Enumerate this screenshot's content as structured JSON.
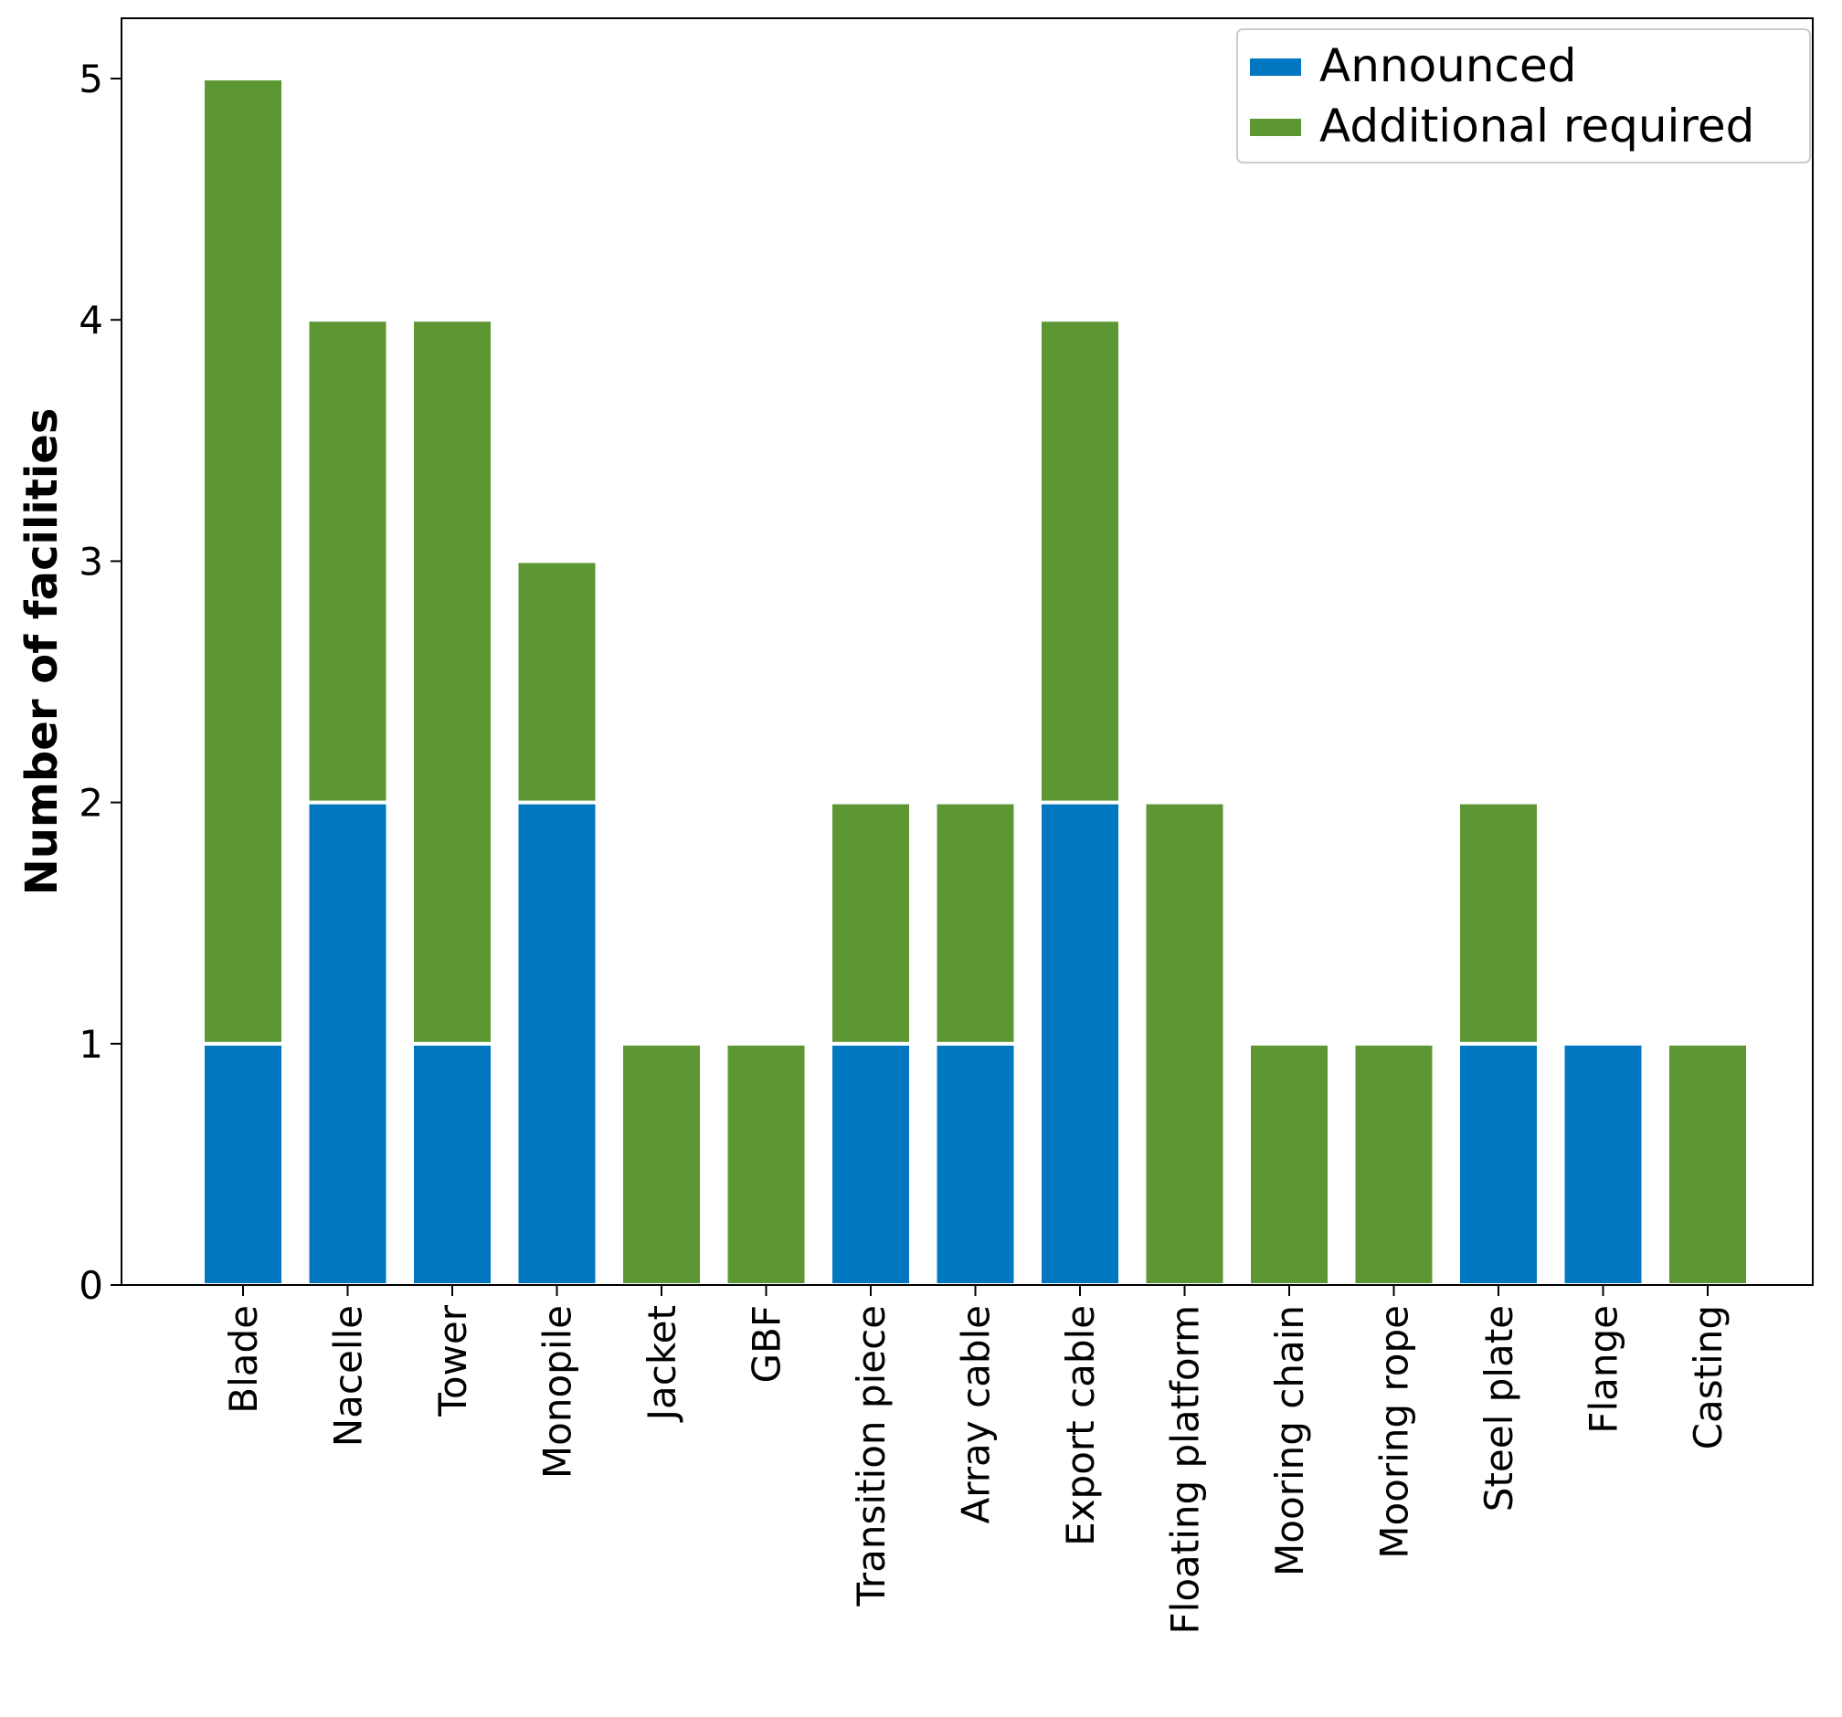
{
  "chart_data": {
    "type": "bar",
    "stacked": true,
    "title": "",
    "xlabel": "",
    "ylabel": "Number of facilities",
    "ylim": [
      0,
      5.25
    ],
    "yticks": [
      0,
      1,
      2,
      3,
      4,
      5
    ],
    "grid": false,
    "legend_position": "top-right",
    "categories": [
      "Blade",
      "Nacelle",
      "Tower",
      "Monopile",
      "Jacket",
      "GBF",
      "Transition piece",
      "Array cable",
      "Export cable",
      "Floating platform",
      "Mooring chain",
      "Mooring rope",
      "Steel plate",
      "Flange",
      "Casting"
    ],
    "series": [
      {
        "name": "Announced",
        "color": "#0077c0",
        "values": [
          1,
          2,
          1,
          2,
          0,
          0,
          1,
          1,
          2,
          0,
          0,
          0,
          1,
          1,
          0
        ]
      },
      {
        "name": "Additional required",
        "color": "#5c9734",
        "values": [
          4,
          2,
          3,
          1,
          1,
          1,
          1,
          1,
          2,
          2,
          1,
          1,
          1,
          0,
          1
        ]
      }
    ]
  }
}
